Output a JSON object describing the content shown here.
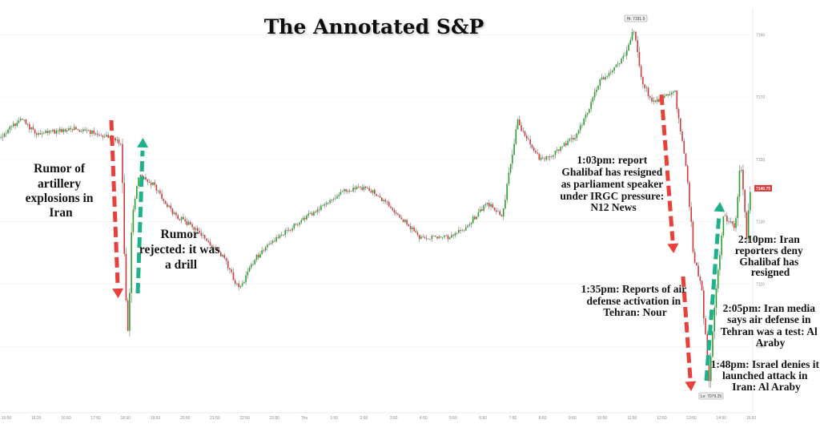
{
  "chart_data": {
    "type": "candlestick",
    "title": "The Annotated S&P",
    "ylim": [
      7070,
      7196
    ],
    "ticks_right": [
      "7190",
      "7170",
      "7150",
      "7130",
      "7110",
      "7090"
    ],
    "tick_values": [
      7190,
      7170,
      7150,
      7130,
      7110,
      7090
    ],
    "x_labels": [
      "15:50",
      "16:25",
      "16:50",
      "17:50",
      "18:50",
      "19:50",
      "20:50",
      "21:50",
      "22:50",
      "23:50",
      "Thu",
      "1:50",
      "2:50",
      "3:50",
      "4:50",
      "5:50",
      "6:50",
      "7:50",
      "8:50",
      "9:50",
      "10:50",
      "11:50",
      "12:50",
      "13:50",
      "14:50",
      "15:50"
    ],
    "price_path": [
      [
        0,
        7157
      ],
      [
        0.03,
        7163
      ],
      [
        0.05,
        7158
      ],
      [
        0.1,
        7160
      ],
      [
        0.15,
        7157
      ],
      [
        0.163,
        7155
      ],
      [
        0.167,
        7113
      ],
      [
        0.172,
        7092
      ],
      [
        0.176,
        7128
      ],
      [
        0.185,
        7145
      ],
      [
        0.205,
        7142
      ],
      [
        0.23,
        7133
      ],
      [
        0.26,
        7128
      ],
      [
        0.3,
        7118
      ],
      [
        0.32,
        7108
      ],
      [
        0.34,
        7118
      ],
      [
        0.37,
        7125
      ],
      [
        0.4,
        7130
      ],
      [
        0.43,
        7135
      ],
      [
        0.46,
        7140
      ],
      [
        0.49,
        7141
      ],
      [
        0.52,
        7135
      ],
      [
        0.56,
        7125
      ],
      [
        0.6,
        7125
      ],
      [
        0.62,
        7128
      ],
      [
        0.65,
        7136
      ],
      [
        0.67,
        7132
      ],
      [
        0.69,
        7162
      ],
      [
        0.72,
        7150
      ],
      [
        0.74,
        7152
      ],
      [
        0.77,
        7158
      ],
      [
        0.8,
        7175
      ],
      [
        0.83,
        7182
      ],
      [
        0.845,
        7191.5
      ],
      [
        0.855,
        7176
      ],
      [
        0.87,
        7168
      ],
      [
        0.9,
        7172
      ],
      [
        0.905,
        7162
      ],
      [
        0.915,
        7148
      ],
      [
        0.925,
        7118
      ],
      [
        0.935,
        7110
      ],
      [
        0.945,
        7079.25
      ],
      [
        0.955,
        7110
      ],
      [
        0.965,
        7132
      ],
      [
        0.98,
        7128
      ],
      [
        0.987,
        7150
      ],
      [
        0.995,
        7125
      ],
      [
        1.0,
        7141
      ]
    ],
    "high_label": "Hi: 7191.5",
    "low_label": "Lo: 7079.25",
    "last_label": "7140.75",
    "last_value": 7140.75,
    "annotations": [
      "Rumor of artillery explosions in Iran",
      "Rumor rejected: it was a drill",
      "1:03pm: report Ghalibaf has resigned as parliament speaker under IRGC pressure: N12 News",
      "1:35pm: Reports of air defense activation in Tehran: Nour",
      "2:10pm:  Iran reporters deny Ghalibaf has resigned",
      "2:05pm: Iran media says air defense in Tehran was a test: Al Araby",
      "1:48pm: Israel denies it launched attack in Iran: Al Araby"
    ],
    "colors": {
      "up": "#2ca02c",
      "down": "#d23a3a",
      "arrow_red": "#e8403a",
      "arrow_green": "#1fb08c",
      "wick": "#555555"
    }
  },
  "annotations": {
    "a1": [
      "Rumor of",
      "artillery",
      "explosions in",
      "Iran"
    ],
    "a2": [
      "Rumor",
      "rejected: it was",
      "a drill"
    ],
    "a3": [
      "1:03pm: report",
      "Ghalibaf has resigned",
      "as parliament speaker",
      "under IRGC pressure:",
      "N12 News"
    ],
    "a4": [
      "1:35pm: Reports of air",
      "defense activation in",
      "Tehran: Nour"
    ],
    "a5": [
      "2:10pm:  Iran",
      "reporters deny",
      "Ghalibaf has",
      "resigned"
    ],
    "a6": [
      "2:05pm: Iran media",
      "says air defense in",
      "Tehran was a test: Al",
      "Araby"
    ],
    "a7": [
      "1:48pm: Israel denies it",
      "launched attack in",
      "Iran: Al Araby"
    ]
  }
}
